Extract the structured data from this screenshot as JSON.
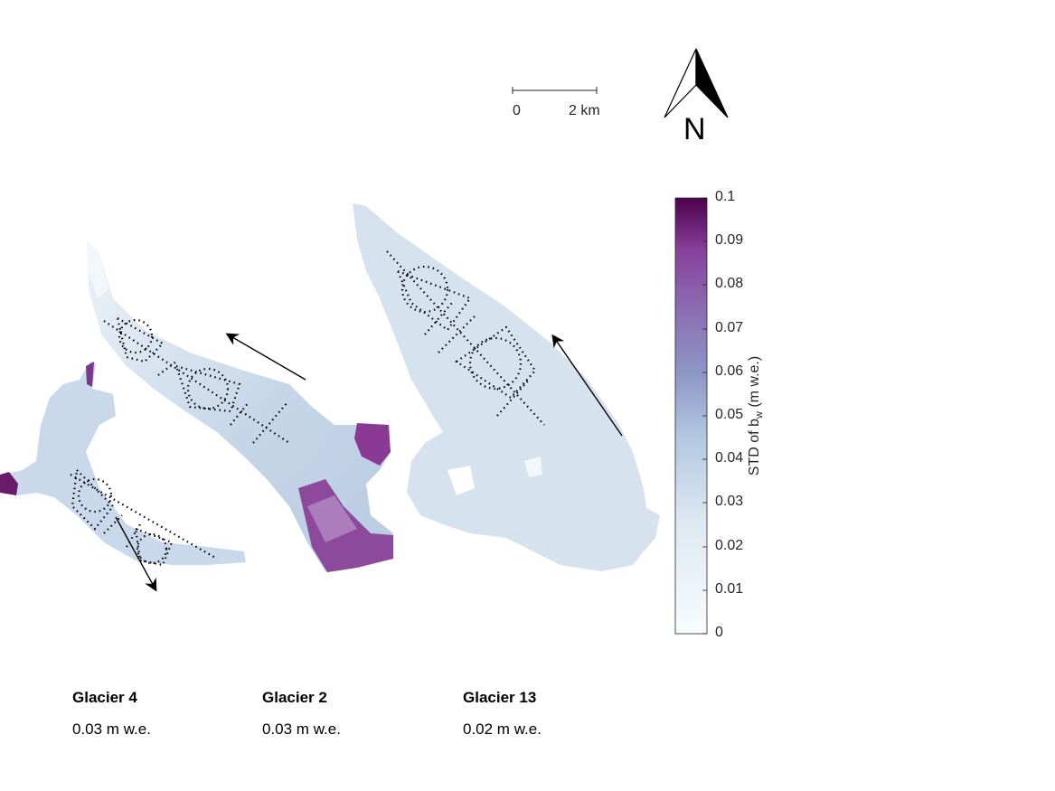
{
  "scale_bar": {
    "zero_label": "0",
    "end_label": "2 km"
  },
  "north_arrow": {
    "label": "N",
    "icon": "north-arrow-icon"
  },
  "colorbar": {
    "title_prefix": "STD of b",
    "title_sub": "w",
    "title_suffix": " (m w.e.)",
    "min": 0,
    "max": 0.1,
    "ticks": [
      "0.1",
      "0.09",
      "0.08",
      "0.07",
      "0.06",
      "0.05",
      "0.04",
      "0.03",
      "0.02",
      "0.01",
      "0"
    ],
    "colors": {
      "low": "#f7fcfd",
      "mid_low": "#bfd3e6",
      "mid": "#8c96c6",
      "mid_high": "#88419d",
      "high": "#4d004b"
    }
  },
  "glaciers": [
    {
      "name": "Glacier 4",
      "std_label": "0.03 m w.e.",
      "flow_icon": "flow-direction-arrow-icon"
    },
    {
      "name": "Glacier 2",
      "std_label": "0.03 m w.e.",
      "flow_icon": "flow-direction-arrow-icon"
    },
    {
      "name": "Glacier 13",
      "std_label": "0.02 m w.e.",
      "flow_icon": "flow-direction-arrow-icon"
    }
  ]
}
